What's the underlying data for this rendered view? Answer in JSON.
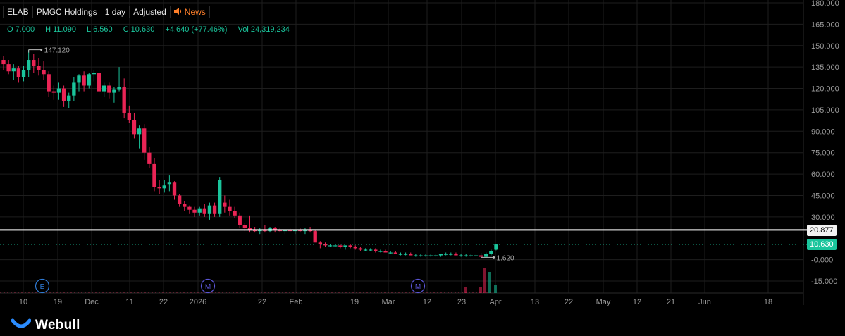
{
  "header": {
    "symbol": "ELAB",
    "name": "PMGC Holdings",
    "interval": "1 day",
    "adjust": "Adjusted",
    "news_label": "News",
    "news_icon": "speaker-icon"
  },
  "ohlc": {
    "o_label": "O",
    "o_value": "7.000",
    "h_label": "H",
    "h_value": "11.090",
    "l_label": "L",
    "l_value": "6.560",
    "c_label": "C",
    "c_value": "10.630",
    "change": "+4.640 (+77.46%)",
    "vol_label": "Vol",
    "vol_value": "24,319,234"
  },
  "colors": {
    "up": "#1ac59c",
    "down": "#ea2455",
    "background": "#000000",
    "grid": "#1e1e1e",
    "accent_news": "#ff7f2a"
  },
  "price_tags": {
    "line_value": "20.877",
    "last_value": "10.630"
  },
  "annotations": {
    "high_label": "147.120",
    "low_label": "1.620"
  },
  "events": [
    {
      "label": "E",
      "type": "earnings"
    },
    {
      "label": "M",
      "type": "meeting"
    },
    {
      "label": "M",
      "type": "meeting"
    }
  ],
  "logo": {
    "text": "Webull"
  },
  "chart_data": {
    "type": "candlestick",
    "symbol": "ELAB",
    "y_ticks": [
      "180.000",
      "165.000",
      "150.000",
      "135.000",
      "120.000",
      "105.000",
      "90.000",
      "75.000",
      "60.000",
      "45.000",
      "30.000",
      "-0.000",
      "-15.000"
    ],
    "x_ticks": [
      "10",
      "19",
      "Dec",
      "11",
      "22",
      "2026",
      "22",
      "Feb",
      "19",
      "Mar",
      "12",
      "23",
      "Apr",
      "13",
      "22",
      "May",
      "12",
      "21",
      "Jun",
      "18"
    ],
    "ylim": [
      -21,
      180
    ],
    "horizontal_line": 20.877,
    "last_price": 10.63,
    "high_marker": 147.12,
    "low_marker": 1.62,
    "candles": [
      [
        140,
        143,
        133,
        137
      ],
      [
        137,
        140,
        130,
        132
      ],
      [
        132,
        137,
        126,
        134
      ],
      [
        134,
        136,
        124,
        128
      ],
      [
        128,
        136,
        125,
        133
      ],
      [
        133,
        147.12,
        128,
        140
      ],
      [
        140,
        144,
        131,
        136
      ],
      [
        136,
        141,
        129,
        133
      ],
      [
        133,
        139,
        126,
        130
      ],
      [
        130,
        132,
        114,
        118
      ],
      [
        118,
        122,
        112,
        117
      ],
      [
        117,
        124,
        112,
        120
      ],
      [
        120,
        122,
        107,
        111
      ],
      [
        111,
        117,
        106,
        115
      ],
      [
        115,
        128,
        111,
        124
      ],
      [
        124,
        130,
        118,
        129
      ],
      [
        129,
        132,
        118,
        122
      ],
      [
        122,
        131,
        120,
        130
      ],
      [
        130,
        133,
        125,
        131
      ],
      [
        131,
        134,
        115,
        118
      ],
      [
        118,
        124,
        114,
        122
      ],
      [
        122,
        124,
        113,
        117
      ],
      [
        117,
        121,
        110,
        119
      ],
      [
        119,
        135,
        118,
        121
      ],
      [
        121,
        127,
        99,
        103
      ],
      [
        103,
        108,
        96,
        98
      ],
      [
        98,
        103,
        85,
        88
      ],
      [
        88,
        94,
        78,
        92
      ],
      [
        92,
        95,
        70,
        75
      ],
      [
        75,
        79,
        64,
        67
      ],
      [
        67,
        71,
        48,
        51
      ],
      [
        51,
        56,
        46,
        50
      ],
      [
        50,
        56,
        47,
        52
      ],
      [
        53,
        59,
        48,
        54
      ],
      [
        54,
        55,
        42,
        45
      ],
      [
        45,
        46,
        37,
        39
      ],
      [
        39,
        41,
        34,
        37
      ],
      [
        37,
        38,
        32,
        35
      ],
      [
        35,
        37,
        30,
        33
      ],
      [
        33,
        37,
        31,
        36
      ],
      [
        36,
        39,
        30,
        32
      ],
      [
        32,
        40,
        28,
        38
      ],
      [
        38,
        40,
        30,
        32
      ],
      [
        32,
        58,
        30,
        56
      ],
      [
        40,
        45,
        33,
        37
      ],
      [
        37,
        42,
        31,
        34
      ],
      [
        34,
        37,
        29,
        31
      ],
      [
        31,
        33,
        22,
        24
      ],
      [
        24,
        26,
        20,
        22
      ],
      [
        22,
        31,
        19,
        21
      ],
      [
        21,
        23,
        19,
        20
      ],
      [
        20,
        22,
        18,
        21
      ],
      [
        21,
        24,
        19,
        20
      ],
      [
        20,
        23,
        19,
        22
      ],
      [
        22,
        23,
        19,
        21
      ],
      [
        21,
        22,
        19,
        20
      ],
      [
        20,
        21,
        18,
        21
      ],
      [
        21,
        22,
        19,
        20
      ],
      [
        20,
        21,
        18,
        21
      ],
      [
        21,
        22,
        19,
        20
      ],
      [
        20,
        22,
        18,
        21
      ],
      [
        21,
        23,
        19,
        20
      ],
      [
        20,
        21,
        14,
        12
      ],
      [
        12,
        13,
        8,
        11
      ],
      [
        11,
        12,
        9,
        10
      ],
      [
        10,
        11,
        9,
        10
      ],
      [
        10,
        11,
        9,
        10
      ],
      [
        10,
        11,
        8,
        9
      ],
      [
        9,
        10,
        7,
        10
      ],
      [
        10,
        11,
        8,
        9
      ],
      [
        9,
        10,
        7,
        8
      ],
      [
        8,
        9,
        6,
        7
      ],
      [
        7,
        8,
        6,
        7
      ],
      [
        7,
        8,
        6,
        7
      ],
      [
        7,
        8,
        5,
        6
      ],
      [
        6,
        7,
        5,
        6
      ],
      [
        6,
        7,
        5,
        5
      ],
      [
        5,
        6,
        4,
        5
      ],
      [
        5,
        6,
        4,
        4
      ],
      [
        4,
        5,
        3,
        4
      ],
      [
        4,
        5,
        3,
        4
      ],
      [
        4,
        5,
        3,
        3
      ],
      [
        3,
        4,
        2,
        3
      ],
      [
        3,
        4,
        2,
        3
      ],
      [
        3,
        4,
        2,
        3
      ],
      [
        3,
        4,
        2,
        3
      ],
      [
        3,
        4,
        2,
        3
      ],
      [
        3,
        4,
        2,
        4
      ],
      [
        4,
        5,
        3,
        4
      ],
      [
        4,
        5,
        3,
        4
      ],
      [
        4,
        5,
        3,
        3
      ],
      [
        3,
        4,
        2,
        3
      ],
      [
        3,
        4,
        2,
        3
      ],
      [
        3,
        4,
        2,
        3
      ],
      [
        3,
        4,
        2,
        3
      ],
      [
        3,
        3,
        1.62,
        2
      ],
      [
        2,
        5,
        1.62,
        4
      ],
      [
        4,
        7,
        3,
        6
      ],
      [
        7,
        11.09,
        6.56,
        10.63
      ]
    ],
    "volume_note": "volume bars at bottom; largest volume on last sessions"
  }
}
